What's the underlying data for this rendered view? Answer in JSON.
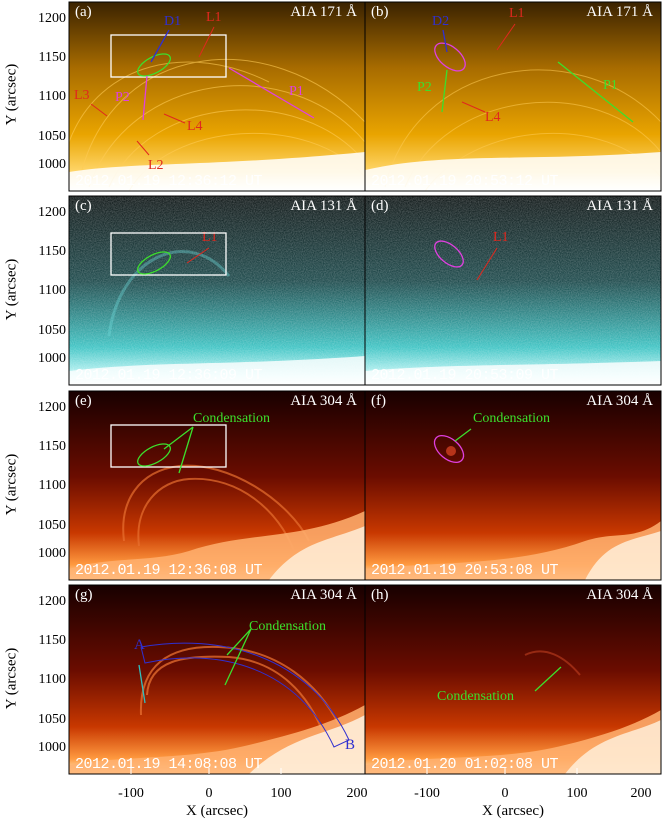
{
  "panels": [
    {
      "label": "(a)",
      "title": "AIA 171 Å",
      "time": "2012.01.19  12:36:12 UT"
    },
    {
      "label": "(b)",
      "title": "AIA 171 Å",
      "time": "2012.01.19  20:53:12 UT"
    },
    {
      "label": "(c)",
      "title": "AIA 131 Å",
      "time": "2012.01.19  12:36:09 UT"
    },
    {
      "label": "(d)",
      "title": "AIA 131 Å",
      "time": "2012.01.19  20:53:09 UT"
    },
    {
      "label": "(e)",
      "title": "AIA 304 Å",
      "time": "2012.01.19  12:36:08 UT"
    },
    {
      "label": "(f)",
      "title": "AIA 304 Å",
      "time": "2012.01.19  20:53:08 UT"
    },
    {
      "label": "(g)",
      "title": "AIA 304 Å",
      "time": "2012.01.19  14:08:08 UT"
    },
    {
      "label": "(h)",
      "title": "AIA 304 Å",
      "time": "2012.01.20  01:02:08 UT"
    }
  ],
  "annotations": {
    "a": {
      "d1": "D1",
      "l1": "L1",
      "l3": "L3",
      "p2": "P2",
      "l4": "L4",
      "p1": "P1",
      "l2": "L2"
    },
    "b": {
      "d2": "D2",
      "l1": "L1",
      "p2": "P2",
      "l4": "L4",
      "p1": "P1"
    },
    "c": {
      "l1": "L1"
    },
    "d": {
      "l1": "L1"
    },
    "e": {
      "condensation": "Condensation"
    },
    "f": {
      "condensation": "Condensation"
    },
    "g": {
      "condensation": "Condensation",
      "a": "A",
      "b": "B"
    },
    "h": {
      "condensation": "Condensation"
    }
  },
  "axes": {
    "ylabel": "Y (arcsec)",
    "xlabel": "X (arcsec)",
    "yticks": [
      "1200",
      "1150",
      "1100",
      "1050",
      "1000"
    ],
    "xticks": [
      "-100",
      "0",
      "100",
      "200"
    ]
  },
  "colors": {
    "aia171": "#e9a400",
    "aia131": "#2fbfbf",
    "aia304": "#b02000",
    "red_arrow": "#e0281e",
    "green_mark": "#3ce02c",
    "magenta_mark": "#e040e0",
    "blue_mark": "#3030d0"
  }
}
